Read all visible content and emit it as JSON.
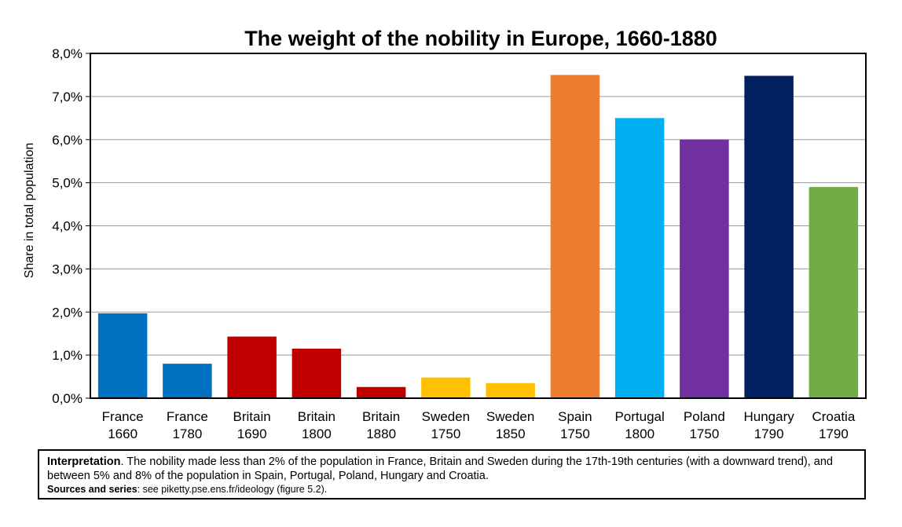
{
  "chart_data": {
    "type": "bar",
    "title": "The weight of the nobility in Europe, 1660-1880",
    "ylabel": "Share in total population",
    "ylim": [
      0,
      8
    ],
    "yticks": [
      "0,0%",
      "1,0%",
      "2,0%",
      "3,0%",
      "4,0%",
      "5,0%",
      "6,0%",
      "7,0%",
      "8,0%"
    ],
    "grid": true,
    "categories": [
      {
        "line1": "France",
        "line2": "1660"
      },
      {
        "line1": "France",
        "line2": "1780"
      },
      {
        "line1": "Britain",
        "line2": "1690"
      },
      {
        "line1": "Britain",
        "line2": "1800"
      },
      {
        "line1": "Britain",
        "line2": "1880"
      },
      {
        "line1": "Sweden",
        "line2": "1750"
      },
      {
        "line1": "Sweden",
        "line2": "1850"
      },
      {
        "line1": "Spain",
        "line2": "1750"
      },
      {
        "line1": "Portugal",
        "line2": "1800"
      },
      {
        "line1": "Poland",
        "line2": "1750"
      },
      {
        "line1": "Hungary",
        "line2": "1790"
      },
      {
        "line1": "Croatia",
        "line2": "1790"
      }
    ],
    "values": [
      1.97,
      0.8,
      1.43,
      1.15,
      0.26,
      0.48,
      0.35,
      7.5,
      6.5,
      6.0,
      7.48,
      4.9
    ],
    "colors": [
      "#0070c0",
      "#0070c0",
      "#c00000",
      "#c00000",
      "#c00000",
      "#ffc000",
      "#ffc000",
      "#ed7d31",
      "#00b0f0",
      "#7030a0",
      "#002060",
      "#70ad47"
    ]
  },
  "note": {
    "interpretation_label": "Interpretation",
    "interpretation_text": ". The nobility made less than 2% of the population in France, Britain and Sweden during the 17th-19th centuries (with a downward trend), and between 5% and 8% of the population in Spain, Portugal, Poland, Hungary and Croatia.",
    "sources_label": "Sources and series",
    "sources_text": ": see piketty.pse.ens.fr/ideology (figure 5.2)."
  }
}
